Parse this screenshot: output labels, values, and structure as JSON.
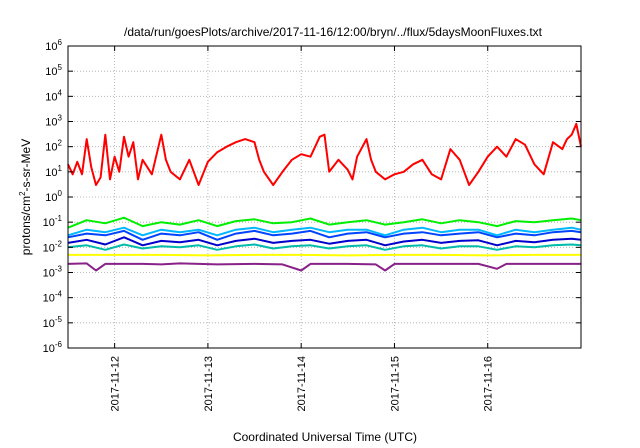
{
  "chart_data": {
    "type": "line",
    "title": "/data/run/goesPlots/archive/2017-11-16/12:00/bryn/../flux/5daysMoonFluxes.txt",
    "xlabel": "Coordinated Universal Time (UTC)",
    "ylabel": "protons/cm²-s-sr-MeV",
    "ylabel_parts": [
      "protons/cm",
      "2",
      "-s-sr-MeV"
    ],
    "yscale": "log",
    "ylim_exp": [
      -6,
      6
    ],
    "y_tick_exponents": [
      -6,
      -5,
      -4,
      -3,
      -2,
      -1,
      0,
      1,
      2,
      3,
      4,
      5,
      6
    ],
    "y_tick_base": "10",
    "xlim_days": [
      0,
      5.5
    ],
    "x_tick_labels": [
      "2017-11-12",
      "2017-11-13",
      "2017-11-14",
      "2017-11-15",
      "2017-11-16"
    ],
    "grid": true,
    "series": [
      {
        "color": "#ff0000",
        "points": [
          [
            0,
            20
          ],
          [
            0.05,
            8
          ],
          [
            0.1,
            25
          ],
          [
            0.15,
            8
          ],
          [
            0.2,
            200
          ],
          [
            0.25,
            15
          ],
          [
            0.3,
            3
          ],
          [
            0.35,
            6
          ],
          [
            0.4,
            300
          ],
          [
            0.45,
            5
          ],
          [
            0.5,
            40
          ],
          [
            0.55,
            10
          ],
          [
            0.6,
            250
          ],
          [
            0.65,
            40
          ],
          [
            0.7,
            150
          ],
          [
            0.75,
            5
          ],
          [
            0.8,
            30
          ],
          [
            0.9,
            8
          ],
          [
            1.0,
            300
          ],
          [
            1.05,
            30
          ],
          [
            1.1,
            10
          ],
          [
            1.2,
            5
          ],
          [
            1.3,
            30
          ],
          [
            1.4,
            3
          ],
          [
            1.5,
            25
          ],
          [
            1.6,
            60
          ],
          [
            1.7,
            100
          ],
          [
            1.8,
            150
          ],
          [
            1.9,
            200
          ],
          [
            2.0,
            150
          ],
          [
            2.05,
            30
          ],
          [
            2.1,
            10
          ],
          [
            2.2,
            3
          ],
          [
            2.3,
            10
          ],
          [
            2.4,
            30
          ],
          [
            2.5,
            50
          ],
          [
            2.6,
            40
          ],
          [
            2.7,
            250
          ],
          [
            2.75,
            300
          ],
          [
            2.8,
            10
          ],
          [
            2.9,
            30
          ],
          [
            3.0,
            12
          ],
          [
            3.05,
            5
          ],
          [
            3.1,
            40
          ],
          [
            3.2,
            200
          ],
          [
            3.25,
            30
          ],
          [
            3.3,
            10
          ],
          [
            3.4,
            5
          ],
          [
            3.5,
            8
          ],
          [
            3.6,
            10
          ],
          [
            3.7,
            20
          ],
          [
            3.8,
            30
          ],
          [
            3.9,
            8
          ],
          [
            4.0,
            5
          ],
          [
            4.1,
            80
          ],
          [
            4.2,
            30
          ],
          [
            4.3,
            3
          ],
          [
            4.4,
            10
          ],
          [
            4.5,
            40
          ],
          [
            4.6,
            100
          ],
          [
            4.7,
            40
          ],
          [
            4.8,
            200
          ],
          [
            4.9,
            120
          ],
          [
            5.0,
            20
          ],
          [
            5.1,
            8
          ],
          [
            5.2,
            150
          ],
          [
            5.3,
            80
          ],
          [
            5.35,
            200
          ],
          [
            5.4,
            300
          ],
          [
            5.45,
            800
          ],
          [
            5.5,
            100
          ]
        ]
      },
      {
        "color": "#00ee00",
        "points": [
          [
            0,
            0.06
          ],
          [
            0.2,
            0.12
          ],
          [
            0.4,
            0.09
          ],
          [
            0.6,
            0.15
          ],
          [
            0.8,
            0.07
          ],
          [
            1.0,
            0.1
          ],
          [
            1.2,
            0.08
          ],
          [
            1.4,
            0.12
          ],
          [
            1.6,
            0.07
          ],
          [
            1.8,
            0.11
          ],
          [
            2.0,
            0.13
          ],
          [
            2.2,
            0.09
          ],
          [
            2.4,
            0.1
          ],
          [
            2.6,
            0.14
          ],
          [
            2.8,
            0.08
          ],
          [
            3.0,
            0.1
          ],
          [
            3.2,
            0.12
          ],
          [
            3.4,
            0.08
          ],
          [
            3.6,
            0.1
          ],
          [
            3.8,
            0.13
          ],
          [
            4.0,
            0.09
          ],
          [
            4.2,
            0.12
          ],
          [
            4.4,
            0.1
          ],
          [
            4.6,
            0.07
          ],
          [
            4.8,
            0.11
          ],
          [
            5.0,
            0.1
          ],
          [
            5.2,
            0.12
          ],
          [
            5.4,
            0.14
          ],
          [
            5.5,
            0.12
          ]
        ]
      },
      {
        "color": "#00b7ff",
        "points": [
          [
            0,
            0.03
          ],
          [
            0.2,
            0.05
          ],
          [
            0.4,
            0.04
          ],
          [
            0.6,
            0.06
          ],
          [
            0.8,
            0.03
          ],
          [
            1.0,
            0.05
          ],
          [
            1.2,
            0.04
          ],
          [
            1.4,
            0.05
          ],
          [
            1.6,
            0.03
          ],
          [
            1.8,
            0.05
          ],
          [
            2.0,
            0.06
          ],
          [
            2.2,
            0.04
          ],
          [
            2.4,
            0.05
          ],
          [
            2.6,
            0.06
          ],
          [
            2.8,
            0.04
          ],
          [
            3.0,
            0.05
          ],
          [
            3.2,
            0.05
          ],
          [
            3.4,
            0.03
          ],
          [
            3.6,
            0.05
          ],
          [
            3.8,
            0.06
          ],
          [
            4.0,
            0.04
          ],
          [
            4.2,
            0.05
          ],
          [
            4.4,
            0.05
          ],
          [
            4.6,
            0.03
          ],
          [
            4.8,
            0.05
          ],
          [
            5.0,
            0.04
          ],
          [
            5.2,
            0.05
          ],
          [
            5.4,
            0.06
          ],
          [
            5.5,
            0.05
          ]
        ]
      },
      {
        "color": "#0044ff",
        "points": [
          [
            0,
            0.025
          ],
          [
            0.2,
            0.035
          ],
          [
            0.4,
            0.03
          ],
          [
            0.6,
            0.045
          ],
          [
            0.8,
            0.02
          ],
          [
            1.0,
            0.035
          ],
          [
            1.2,
            0.03
          ],
          [
            1.4,
            0.04
          ],
          [
            1.6,
            0.02
          ],
          [
            1.8,
            0.035
          ],
          [
            2.0,
            0.045
          ],
          [
            2.2,
            0.03
          ],
          [
            2.4,
            0.035
          ],
          [
            2.6,
            0.045
          ],
          [
            2.8,
            0.025
          ],
          [
            3.0,
            0.035
          ],
          [
            3.2,
            0.04
          ],
          [
            3.4,
            0.025
          ],
          [
            3.6,
            0.035
          ],
          [
            3.8,
            0.04
          ],
          [
            4.0,
            0.03
          ],
          [
            4.2,
            0.035
          ],
          [
            4.4,
            0.04
          ],
          [
            4.6,
            0.025
          ],
          [
            4.8,
            0.035
          ],
          [
            5.0,
            0.03
          ],
          [
            5.2,
            0.04
          ],
          [
            5.4,
            0.045
          ],
          [
            5.5,
            0.04
          ]
        ]
      },
      {
        "color": "#00bbaa",
        "points": [
          [
            0,
            0.01
          ],
          [
            0.2,
            0.012
          ],
          [
            0.4,
            0.008
          ],
          [
            0.6,
            0.013
          ],
          [
            0.8,
            0.009
          ],
          [
            1.0,
            0.011
          ],
          [
            1.2,
            0.01
          ],
          [
            1.4,
            0.012
          ],
          [
            1.6,
            0.008
          ],
          [
            1.8,
            0.011
          ],
          [
            2.0,
            0.013
          ],
          [
            2.2,
            0.009
          ],
          [
            2.4,
            0.011
          ],
          [
            2.6,
            0.012
          ],
          [
            2.8,
            0.009
          ],
          [
            3.0,
            0.011
          ],
          [
            3.2,
            0.012
          ],
          [
            3.4,
            0.008
          ],
          [
            3.6,
            0.011
          ],
          [
            3.8,
            0.012
          ],
          [
            4.0,
            0.009
          ],
          [
            4.2,
            0.011
          ],
          [
            4.4,
            0.011
          ],
          [
            4.6,
            0.008
          ],
          [
            4.8,
            0.011
          ],
          [
            5.0,
            0.01
          ],
          [
            5.2,
            0.012
          ],
          [
            5.4,
            0.013
          ],
          [
            5.5,
            0.012
          ]
        ]
      },
      {
        "color": "#0000cc",
        "points": [
          [
            0,
            0.015
          ],
          [
            0.2,
            0.02
          ],
          [
            0.4,
            0.013
          ],
          [
            0.6,
            0.025
          ],
          [
            0.8,
            0.012
          ],
          [
            1.0,
            0.018
          ],
          [
            1.2,
            0.016
          ],
          [
            1.4,
            0.02
          ],
          [
            1.6,
            0.012
          ],
          [
            1.8,
            0.018
          ],
          [
            2.0,
            0.022
          ],
          [
            2.2,
            0.015
          ],
          [
            2.4,
            0.018
          ],
          [
            2.6,
            0.02
          ],
          [
            2.8,
            0.014
          ],
          [
            3.0,
            0.018
          ],
          [
            3.2,
            0.02
          ],
          [
            3.4,
            0.012
          ],
          [
            3.6,
            0.017
          ],
          [
            3.8,
            0.02
          ],
          [
            4.0,
            0.015
          ],
          [
            4.2,
            0.018
          ],
          [
            4.4,
            0.019
          ],
          [
            4.6,
            0.012
          ],
          [
            4.8,
            0.018
          ],
          [
            5.0,
            0.016
          ],
          [
            5.2,
            0.02
          ],
          [
            5.4,
            0.022
          ],
          [
            5.5,
            0.02
          ]
        ]
      },
      {
        "color": "#ffff00",
        "points": [
          [
            0,
            0.005
          ],
          [
            0.5,
            0.005
          ],
          [
            1.0,
            0.005
          ],
          [
            1.5,
            0.0048
          ],
          [
            2.0,
            0.005
          ],
          [
            2.5,
            0.005
          ],
          [
            3.0,
            0.0048
          ],
          [
            3.5,
            0.005
          ],
          [
            4.0,
            0.005
          ],
          [
            4.5,
            0.0048
          ],
          [
            5.0,
            0.005
          ],
          [
            5.5,
            0.005
          ]
        ]
      },
      {
        "color": "#882288",
        "points": [
          [
            0,
            0.0022
          ],
          [
            0.2,
            0.0023
          ],
          [
            0.3,
            0.0012
          ],
          [
            0.4,
            0.0022
          ],
          [
            0.8,
            0.0022
          ],
          [
            1.0,
            0.0021
          ],
          [
            1.2,
            0.0023
          ],
          [
            1.6,
            0.0021
          ],
          [
            2.0,
            0.0022
          ],
          [
            2.3,
            0.0021
          ],
          [
            2.5,
            0.0012
          ],
          [
            2.6,
            0.0022
          ],
          [
            3.0,
            0.0022
          ],
          [
            3.3,
            0.0021
          ],
          [
            3.4,
            0.0012
          ],
          [
            3.5,
            0.0022
          ],
          [
            4.0,
            0.0022
          ],
          [
            4.4,
            0.0022
          ],
          [
            4.6,
            0.0014
          ],
          [
            4.7,
            0.0022
          ],
          [
            5.0,
            0.0022
          ],
          [
            5.5,
            0.0022
          ]
        ]
      }
    ]
  }
}
